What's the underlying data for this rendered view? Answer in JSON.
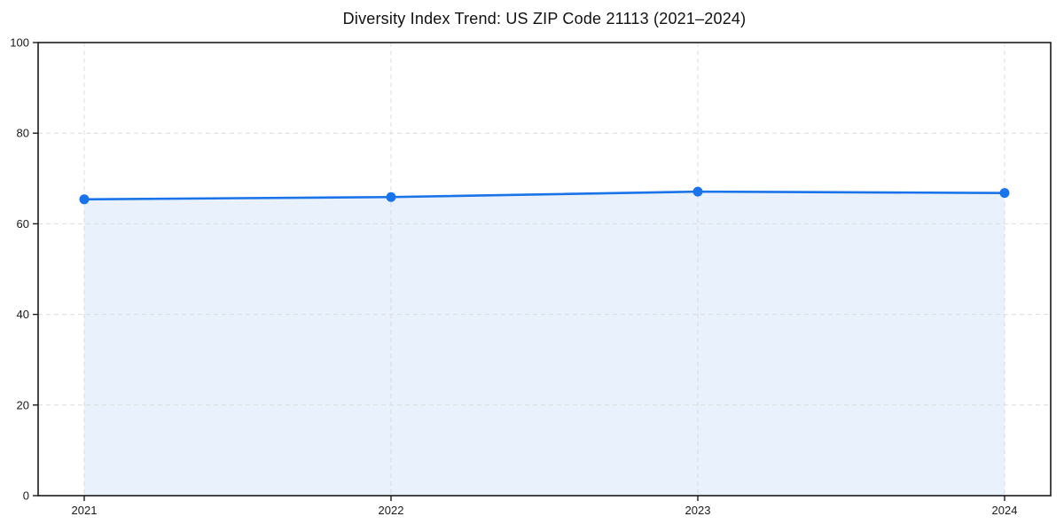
{
  "chart_data": {
    "type": "area",
    "title": "Diversity Index Trend: US ZIP Code 21113 (2021–2024)",
    "categories": [
      "2021",
      "2022",
      "2023",
      "2024"
    ],
    "series": [
      {
        "name": "Diversity Index",
        "values": [
          65.4,
          65.9,
          67.1,
          66.8
        ]
      }
    ],
    "xlabel": "",
    "ylabel": "",
    "ylim": [
      0,
      100
    ],
    "y_ticks": [
      0,
      20,
      40,
      60,
      80,
      100
    ],
    "grid": "dashed, horizontal and vertical",
    "legend": "none",
    "marker": "circle",
    "colors": {
      "line": "#1a73e8",
      "marker": "#1a73e8",
      "area_fill": "#e9f1fc",
      "gridline": "#dcdcdc",
      "spine": "#1a1a1a",
      "tick_label": "#1a1a1a",
      "title": "#111111",
      "background": "#ffffff"
    }
  }
}
